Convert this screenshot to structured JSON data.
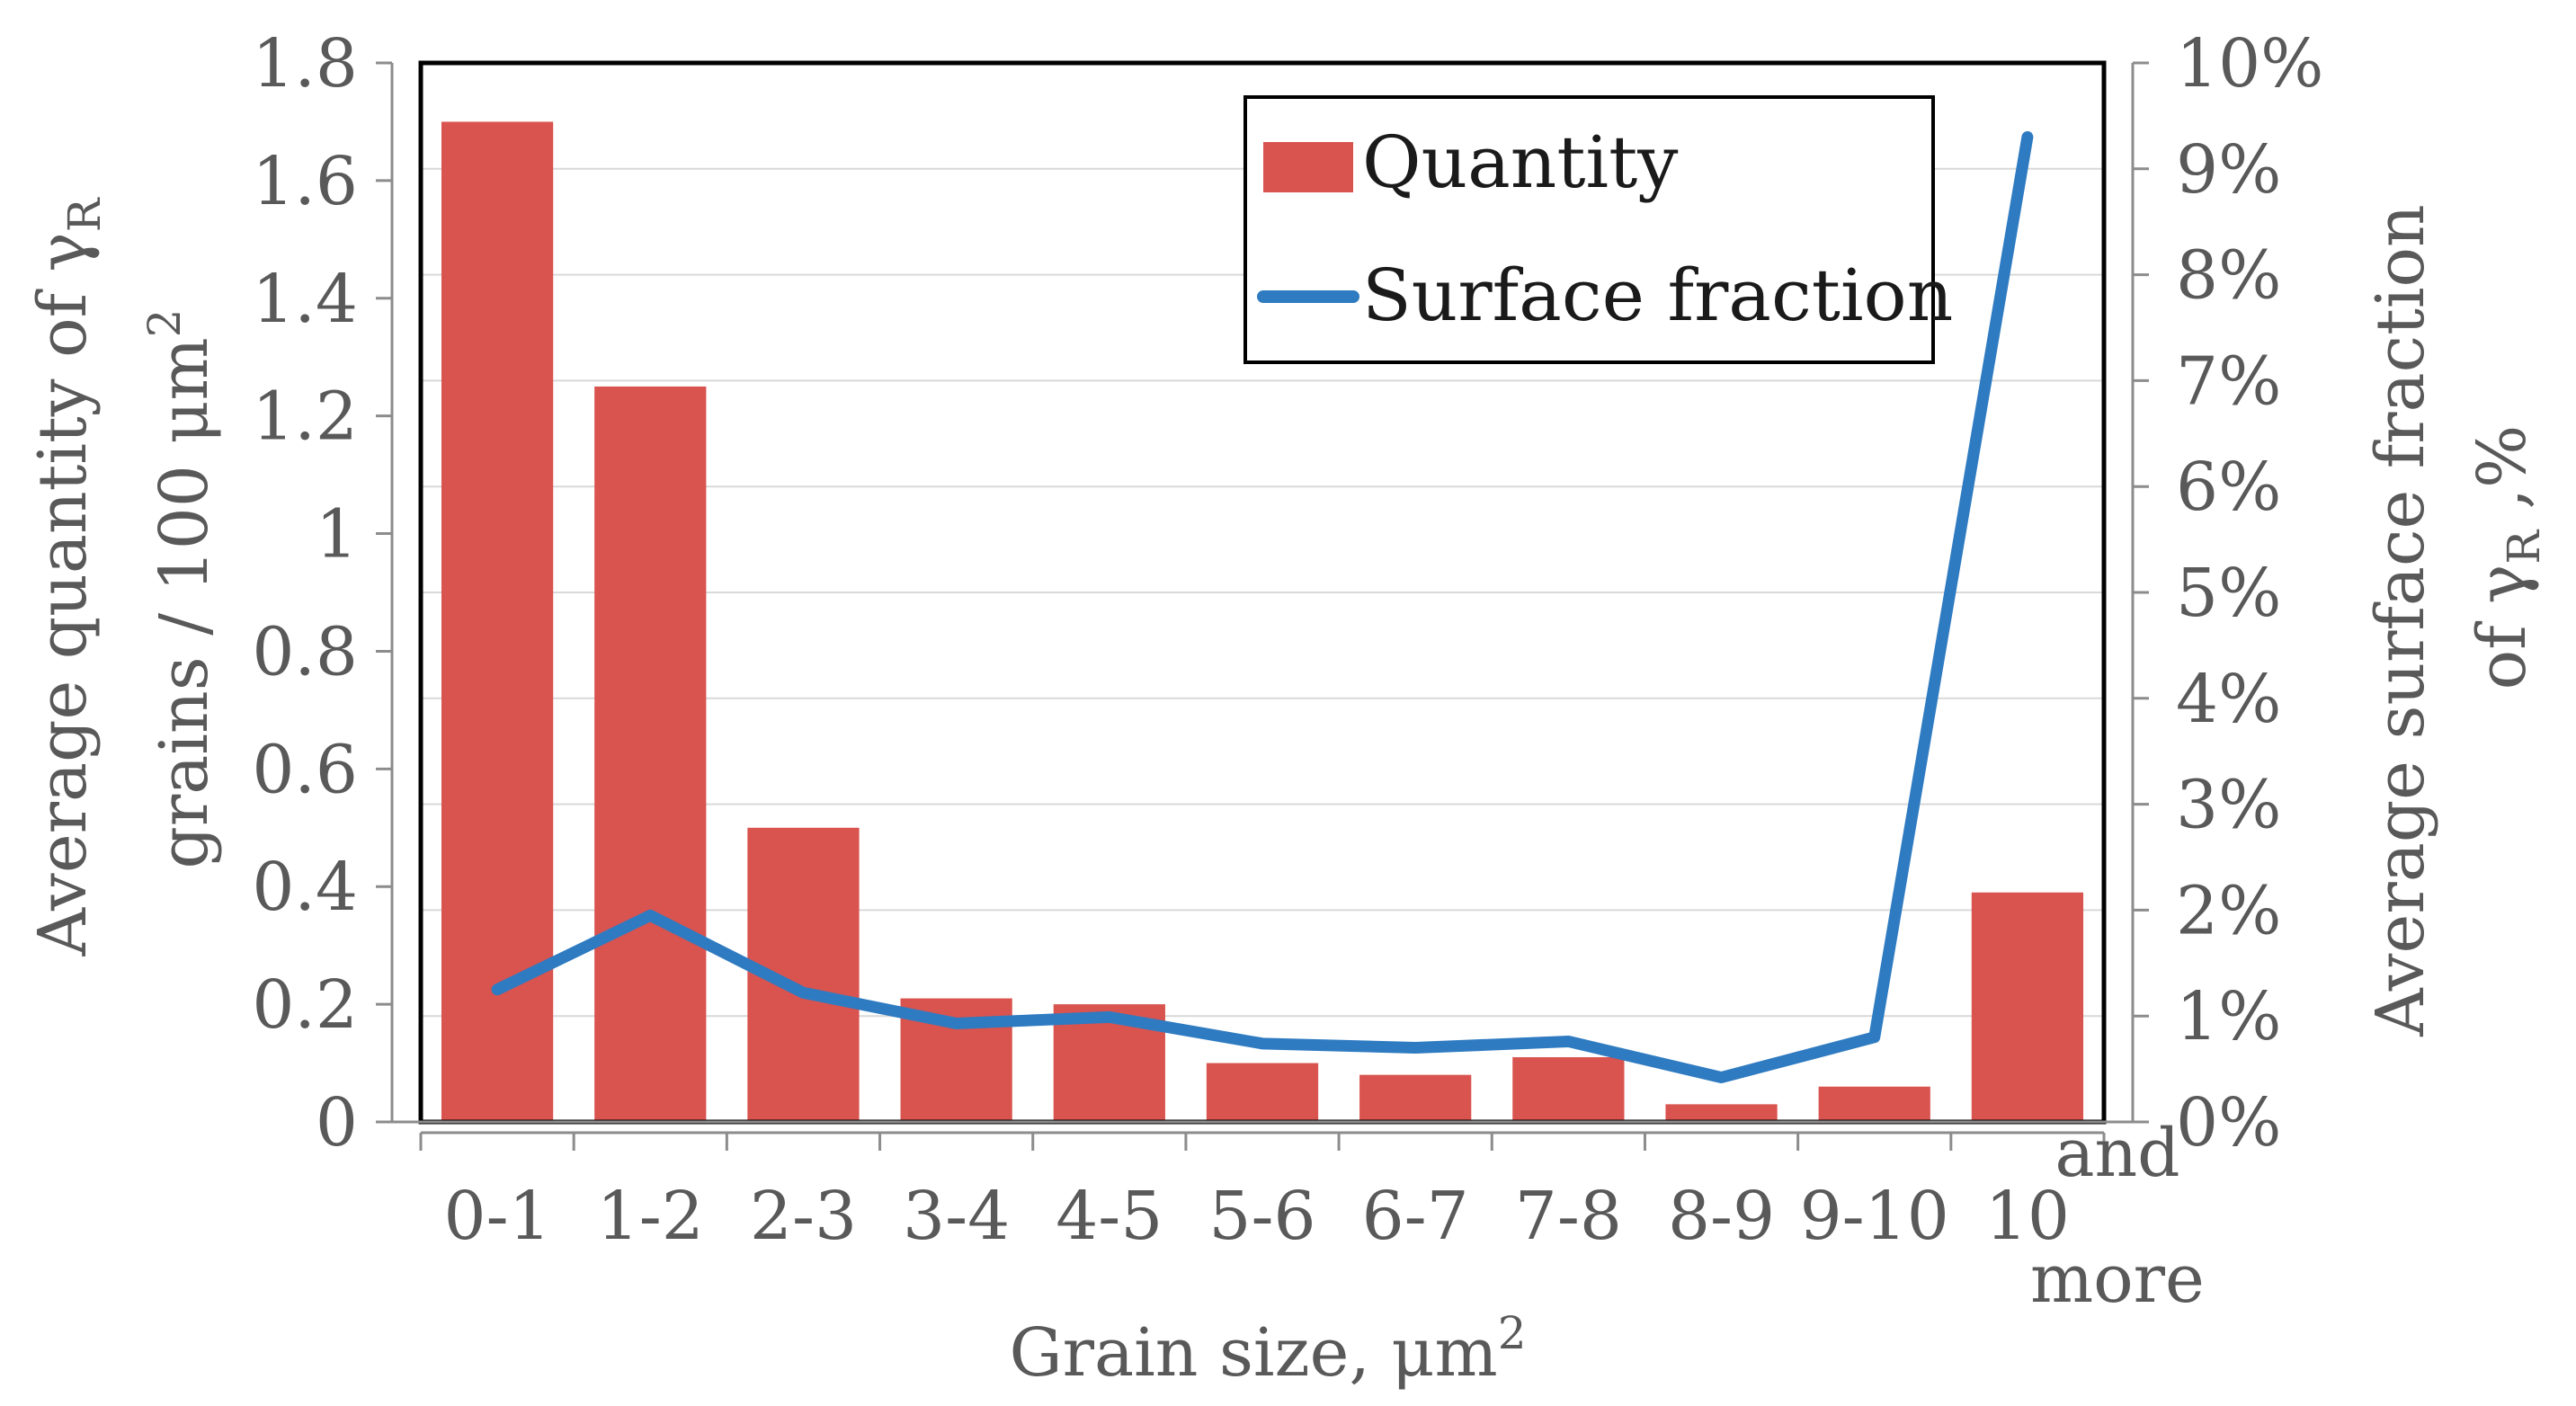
{
  "chart_data": {
    "type": "bar+line",
    "categories": [
      "0-1",
      "1-2",
      "2-3",
      "3-4",
      "4-5",
      "5-6",
      "6-7",
      "7-8",
      "8-9",
      "9-10",
      "10 and more"
    ],
    "category_labels": [
      {
        "text": "0-1"
      },
      {
        "text": "1-2"
      },
      {
        "text": "2-3"
      },
      {
        "text": "3-4"
      },
      {
        "text": "4-5"
      },
      {
        "text": "5-6"
      },
      {
        "text": "6-7"
      },
      {
        "text": "7-8"
      },
      {
        "text": "8-9"
      },
      {
        "text": "9-10"
      },
      {
        "text": "10",
        "extra_top": "and",
        "extra_bottom": "more"
      }
    ],
    "series": [
      {
        "name": "Quantity",
        "type": "bar",
        "axis": "left",
        "color": "#D9534F",
        "values": [
          1.7,
          1.25,
          0.5,
          0.21,
          0.2,
          0.1,
          0.08,
          0.11,
          0.03,
          0.06,
          0.39
        ]
      },
      {
        "name": "Surface fraction",
        "type": "line",
        "axis": "right",
        "color": "#2F7BC1",
        "values": [
          1.25,
          1.95,
          1.22,
          0.93,
          0.99,
          0.74,
          0.7,
          0.76,
          0.42,
          0.8,
          9.3
        ]
      }
    ],
    "left_axis": {
      "label_line1": "Average quantity of γ",
      "label_sub1": "R",
      "label_line2": "grains / 100 μm",
      "label_sup2": "2",
      "min": 0,
      "max": 1.8,
      "step": 0.2,
      "tick_labels": [
        "0",
        "0.2",
        "0.4",
        "0.6",
        "0.8",
        "1",
        "1.2",
        "1.4",
        "1.6",
        "1.8"
      ]
    },
    "right_axis": {
      "label_line1": "Average surface fraction",
      "label_line2": "of γ",
      "label_sub2": "R",
      "label_suffix2": " ,%",
      "min": 0,
      "max": 10,
      "step": 1,
      "tick_labels": [
        "0%",
        "1%",
        "2%",
        "3%",
        "4%",
        "5%",
        "6%",
        "7%",
        "8%",
        "9%",
        "10%"
      ]
    },
    "x_axis": {
      "label": "Grain size, μm",
      "label_sup": "2"
    },
    "legend": {
      "position": "top-right",
      "items": [
        {
          "label": "Quantity",
          "symbol": "bar"
        },
        {
          "label": "Surface fraction",
          "symbol": "line"
        }
      ]
    },
    "gridlines": true
  }
}
